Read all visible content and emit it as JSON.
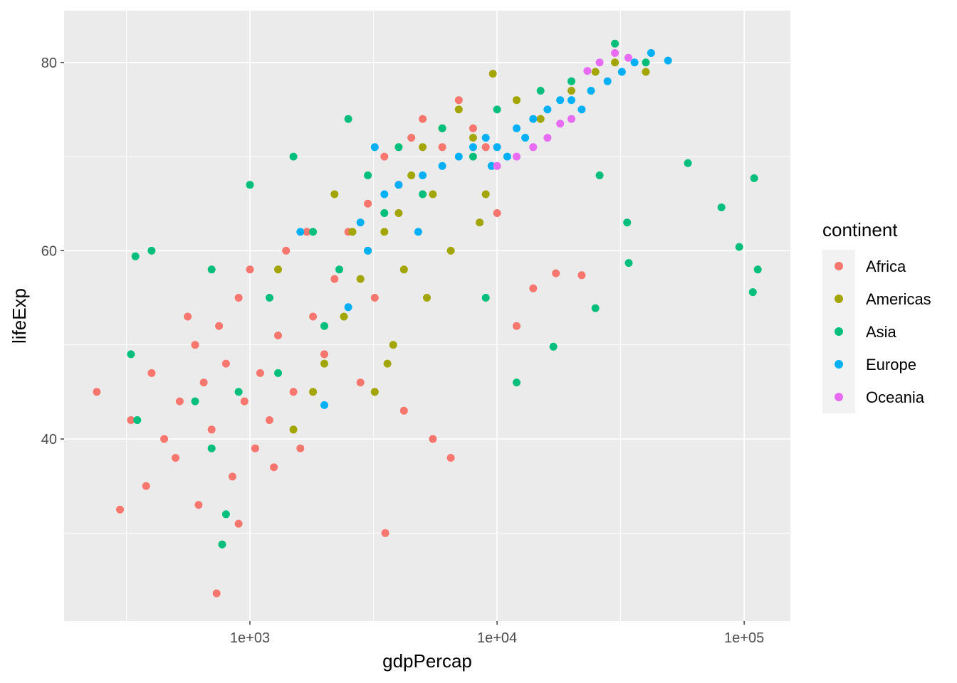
{
  "chart_data": {
    "type": "scatter",
    "title": "",
    "xlabel": "gdpPercap",
    "ylabel": "lifeExp",
    "x_scale": "log10",
    "xlim": [
      177,
      153800
    ],
    "ylim": [
      20.65,
      85.5
    ],
    "x_ticks": [
      1000,
      10000,
      100000
    ],
    "x_tick_labels": [
      "1e+03",
      "1e+04",
      "1e+05"
    ],
    "y_ticks": [
      40,
      60,
      80
    ],
    "y_tick_labels": [
      "40",
      "60",
      "80"
    ],
    "grid": true,
    "legend": {
      "title": "continent",
      "placement": "right"
    },
    "series": [
      {
        "name": "Africa",
        "color": "#F8766D",
        "points": [
          [
            240,
            45
          ],
          [
            298,
            32.5
          ],
          [
            733,
            23.6
          ],
          [
            3530,
            30
          ],
          [
            17300,
            57.6
          ],
          [
            22000,
            57.4
          ],
          [
            330,
            42
          ],
          [
            400,
            47
          ],
          [
            450,
            40
          ],
          [
            500,
            38
          ],
          [
            520,
            44
          ],
          [
            600,
            50
          ],
          [
            650,
            46
          ],
          [
            700,
            41
          ],
          [
            750,
            52
          ],
          [
            800,
            48
          ],
          [
            850,
            36
          ],
          [
            900,
            55
          ],
          [
            950,
            44
          ],
          [
            1000,
            58
          ],
          [
            1100,
            47
          ],
          [
            1200,
            42
          ],
          [
            1300,
            51
          ],
          [
            1400,
            60
          ],
          [
            1500,
            45
          ],
          [
            1600,
            39
          ],
          [
            1800,
            53
          ],
          [
            2000,
            49
          ],
          [
            2200,
            57
          ],
          [
            2500,
            62
          ],
          [
            2800,
            46
          ],
          [
            3000,
            65
          ],
          [
            3500,
            70
          ],
          [
            4000,
            67
          ],
          [
            4500,
            72
          ],
          [
            5000,
            74
          ],
          [
            6000,
            71
          ],
          [
            7000,
            76
          ],
          [
            8000,
            73
          ],
          [
            9000,
            71
          ],
          [
            10000,
            64
          ],
          [
            12000,
            52
          ],
          [
            14000,
            56
          ],
          [
            5500,
            40
          ],
          [
            6500,
            38
          ],
          [
            4200,
            43
          ],
          [
            3200,
            55
          ],
          [
            1700,
            62
          ],
          [
            1250,
            37
          ],
          [
            560,
            53
          ],
          [
            380,
            35
          ],
          [
            620,
            33
          ],
          [
            900,
            31
          ],
          [
            1050,
            39
          ]
        ]
      },
      {
        "name": "Americas",
        "color": "#A3A500",
        "points": [
          [
            1500,
            41
          ],
          [
            1800,
            45
          ],
          [
            2000,
            48
          ],
          [
            2400,
            53
          ],
          [
            2800,
            57
          ],
          [
            3000,
            60
          ],
          [
            3500,
            62
          ],
          [
            4000,
            64
          ],
          [
            4500,
            68
          ],
          [
            5000,
            71
          ],
          [
            5500,
            66
          ],
          [
            6000,
            73
          ],
          [
            7000,
            75
          ],
          [
            8000,
            72
          ],
          [
            9620,
            78.8
          ],
          [
            12000,
            76
          ],
          [
            15000,
            74
          ],
          [
            20000,
            77
          ],
          [
            25000,
            79
          ],
          [
            30000,
            80
          ],
          [
            40000,
            79
          ],
          [
            3200,
            45
          ],
          [
            2600,
            62
          ],
          [
            4200,
            58
          ],
          [
            6500,
            60
          ],
          [
            1300,
            58
          ],
          [
            2200,
            66
          ],
          [
            9000,
            66
          ],
          [
            3800,
            50
          ],
          [
            5200,
            55
          ],
          [
            8500,
            63
          ],
          [
            3600,
            48
          ]
        ]
      },
      {
        "name": "Asia",
        "color": "#00BF7D",
        "points": [
          [
            109700,
            67.7
          ],
          [
            80900,
            64.6
          ],
          [
            95500,
            60.4
          ],
          [
            113500,
            58
          ],
          [
            108400,
            55.6
          ],
          [
            59200,
            69.3
          ],
          [
            33600,
            63
          ],
          [
            34100,
            58.7
          ],
          [
            25000,
            53.9
          ],
          [
            16900,
            49.8
          ],
          [
            772,
            28.8
          ],
          [
            344,
            59.4
          ],
          [
            400,
            60
          ],
          [
            330,
            49
          ],
          [
            350,
            42
          ],
          [
            700,
            39
          ],
          [
            800,
            32
          ],
          [
            900,
            45
          ],
          [
            1000,
            67
          ],
          [
            1200,
            55
          ],
          [
            1500,
            70
          ],
          [
            1800,
            62
          ],
          [
            2000,
            52
          ],
          [
            2500,
            74
          ],
          [
            3000,
            68
          ],
          [
            3500,
            64
          ],
          [
            4000,
            71
          ],
          [
            5000,
            66
          ],
          [
            6000,
            73
          ],
          [
            8000,
            70
          ],
          [
            10000,
            75
          ],
          [
            15000,
            77
          ],
          [
            20000,
            78
          ],
          [
            30000,
            82
          ],
          [
            40000,
            80
          ],
          [
            600,
            44
          ],
          [
            1300,
            47
          ],
          [
            2300,
            58
          ],
          [
            12000,
            46
          ],
          [
            9000,
            55
          ],
          [
            26000,
            68
          ],
          [
            700,
            58
          ]
        ]
      },
      {
        "name": "Europe",
        "color": "#00B0F6",
        "points": [
          [
            49200,
            80.2
          ],
          [
            2000,
            43.6
          ],
          [
            2500,
            54
          ],
          [
            3000,
            60
          ],
          [
            3500,
            66
          ],
          [
            4000,
            67
          ],
          [
            5000,
            68
          ],
          [
            6000,
            69
          ],
          [
            7000,
            70
          ],
          [
            8000,
            71
          ],
          [
            9000,
            72
          ],
          [
            10000,
            71
          ],
          [
            12000,
            73
          ],
          [
            14000,
            74
          ],
          [
            16000,
            75
          ],
          [
            18000,
            76
          ],
          [
            20000,
            76
          ],
          [
            24000,
            77
          ],
          [
            28000,
            78
          ],
          [
            32000,
            79
          ],
          [
            36000,
            80
          ],
          [
            42000,
            81
          ],
          [
            2800,
            63
          ],
          [
            4800,
            62
          ],
          [
            9500,
            69
          ],
          [
            11000,
            70
          ],
          [
            13000,
            72
          ],
          [
            22000,
            75
          ],
          [
            1600,
            62
          ],
          [
            3200,
            71
          ]
        ]
      },
      {
        "name": "Oceania",
        "color": "#E76BF3",
        "points": [
          [
            10000,
            69
          ],
          [
            12000,
            70
          ],
          [
            14000,
            71
          ],
          [
            16000,
            72
          ],
          [
            18000,
            73.5
          ],
          [
            20000,
            74
          ],
          [
            23200,
            79.1
          ],
          [
            26000,
            80
          ],
          [
            30000,
            81
          ],
          [
            34000,
            80.5
          ]
        ]
      }
    ]
  }
}
